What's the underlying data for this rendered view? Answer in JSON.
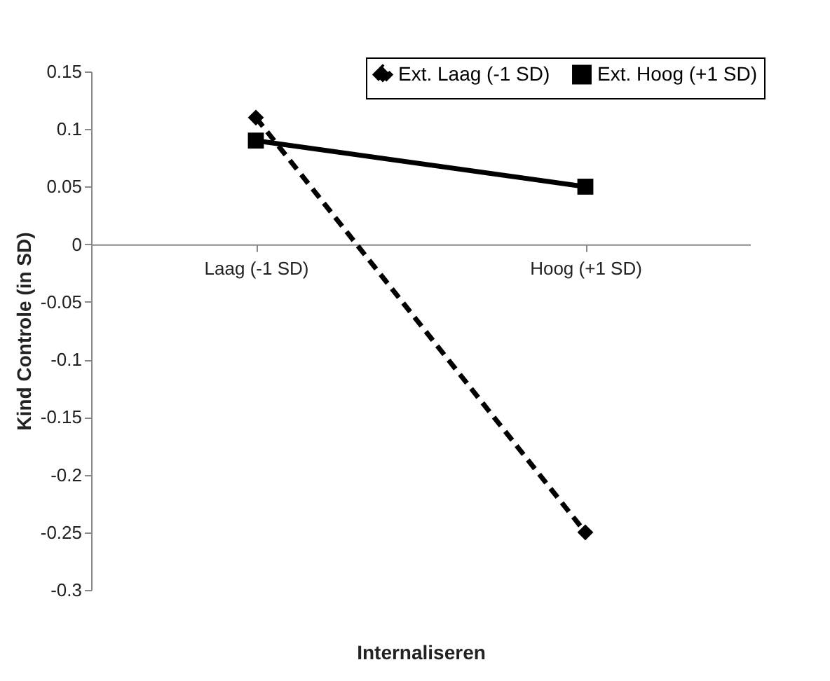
{
  "chart_data": {
    "type": "line",
    "xlabel": "Internaliseren",
    "ylabel": "Kind Controle (in SD)",
    "categories": [
      "Laag (-1 SD)",
      "Hoog (+1 SD)"
    ],
    "series": [
      {
        "name": "Ext. Laag (-1 SD)",
        "color": "#000000",
        "values": [
          0.11,
          -0.25
        ],
        "marker": "diamond",
        "line_style": "dashed"
      },
      {
        "name": "Ext. Hoog (+1 SD)",
        "color": "#000000",
        "values": [
          0.09,
          0.05
        ],
        "marker": "square",
        "line_style": "solid"
      }
    ],
    "ylim": [
      -0.3,
      0.15
    ],
    "yticks": [
      -0.3,
      -0.25,
      -0.2,
      -0.15,
      -0.1,
      -0.05,
      0,
      0.05,
      0.1,
      0.15
    ],
    "grid": false,
    "legend": "top right"
  }
}
